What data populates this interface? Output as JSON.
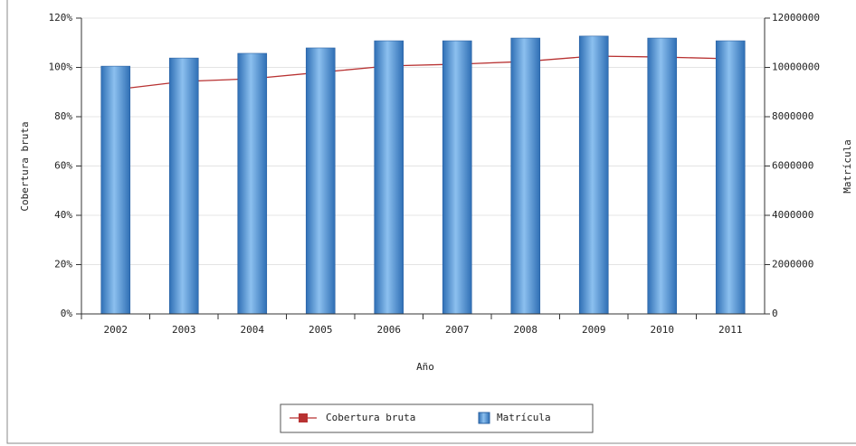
{
  "chart_data": {
    "type": "bar-line",
    "x_label": "Año",
    "y_label": "Cobertura bruta",
    "y2_label": "Matrícula",
    "categories": [
      "2002",
      "2003",
      "2004",
      "2005",
      "2006",
      "2007",
      "2008",
      "2009",
      "2010",
      "2011"
    ],
    "series": [
      {
        "name": "Cobertura bruta",
        "type": "line",
        "color": "#b83232",
        "axis": "y",
        "values": [
          91.0,
          94.3,
          95.4,
          98.0,
          100.6,
          101.3,
          102.4,
          104.6,
          104.2,
          103.5
        ]
      },
      {
        "name": "Matrícula",
        "type": "bar",
        "color": "#4f94d8",
        "axis": "y2",
        "values": [
          10050000,
          10380000,
          10570000,
          10790000,
          11080000,
          11080000,
          11190000,
          11270000,
          11190000,
          11080000
        ]
      }
    ],
    "ylim": [
      0,
      120
    ],
    "yticks": [
      {
        "value": 0,
        "label": "0%"
      },
      {
        "value": 20,
        "label": "20%"
      },
      {
        "value": 40,
        "label": "40%"
      },
      {
        "value": 60,
        "label": "60%"
      },
      {
        "value": 80,
        "label": "80%"
      },
      {
        "value": 100,
        "label": "100%"
      },
      {
        "value": 120,
        "label": "120%"
      }
    ],
    "y2lim": [
      0,
      12000000
    ],
    "y2ticks": [
      0,
      2000000,
      4000000,
      6000000,
      8000000,
      10000000,
      12000000
    ],
    "grid": true,
    "legend": "bottom"
  }
}
